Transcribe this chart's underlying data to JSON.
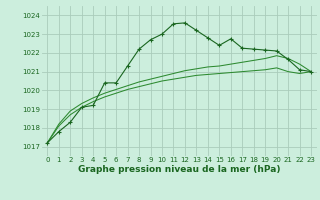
{
  "title": "Graphe pression niveau de la mer (hPa)",
  "bg_color": "#cceedd",
  "grid_color": "#aaccbb",
  "line_color_main": "#1a6620",
  "line_color_smooth": "#2d8a30",
  "xlim": [
    -0.5,
    23.5
  ],
  "ylim": [
    1016.5,
    1024.5
  ],
  "yticks": [
    1017,
    1018,
    1019,
    1020,
    1021,
    1022,
    1023,
    1024
  ],
  "xticks": [
    0,
    1,
    2,
    3,
    4,
    5,
    6,
    7,
    8,
    9,
    10,
    11,
    12,
    13,
    14,
    15,
    16,
    17,
    18,
    19,
    20,
    21,
    22,
    23
  ],
  "series_main": [
    1017.2,
    1017.8,
    1018.3,
    1019.1,
    1019.2,
    1020.4,
    1020.4,
    1021.3,
    1022.2,
    1022.7,
    1023.0,
    1023.55,
    1023.6,
    1023.2,
    1022.8,
    1022.4,
    1022.75,
    1022.25,
    1022.2,
    1022.15,
    1022.1,
    1021.65,
    1021.1,
    1021.0
  ],
  "series_smooth1": [
    1017.2,
    1018.1,
    1018.7,
    1019.1,
    1019.4,
    1019.65,
    1019.85,
    1020.05,
    1020.2,
    1020.35,
    1020.5,
    1020.6,
    1020.7,
    1020.8,
    1020.85,
    1020.9,
    1020.95,
    1021.0,
    1021.05,
    1021.1,
    1021.2,
    1021.0,
    1020.9,
    1021.0
  ],
  "series_smooth2": [
    1017.2,
    1018.2,
    1018.9,
    1019.3,
    1019.6,
    1019.85,
    1020.05,
    1020.25,
    1020.45,
    1020.6,
    1020.75,
    1020.9,
    1021.05,
    1021.15,
    1021.25,
    1021.3,
    1021.4,
    1021.5,
    1021.6,
    1021.7,
    1021.85,
    1021.7,
    1021.4,
    1021.0
  ],
  "title_fontsize": 6.5,
  "tick_fontsize": 5
}
